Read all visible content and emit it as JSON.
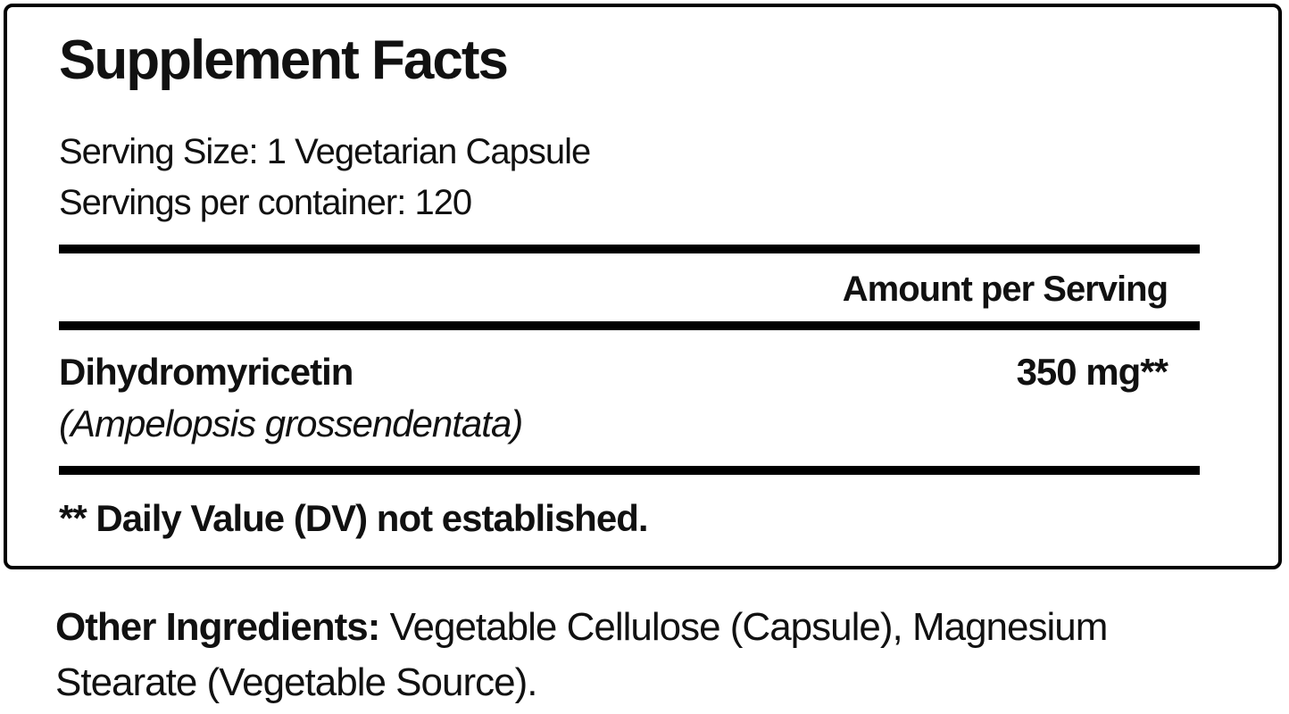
{
  "panel": {
    "title": "Supplement Facts",
    "serving_size": "Serving Size: 1 Vegetarian Capsule",
    "servings_per_container": "Servings per container: 120",
    "amount_header": "Amount per Serving",
    "rows": [
      {
        "name": "Dihydromyricetin",
        "latin_name": "(Ampelopsis grossendentata)",
        "amount": "350 mg**"
      }
    ],
    "footnote": "** Daily Value (DV) not established."
  },
  "other_ingredients": {
    "label": "Other Ingredients:",
    "text": " Vegetable Cellulose (Capsule), Magnesium Stearate (Vegetable Source)."
  },
  "colors": {
    "text": "#111111",
    "border": "#000000",
    "background": "#ffffff"
  }
}
